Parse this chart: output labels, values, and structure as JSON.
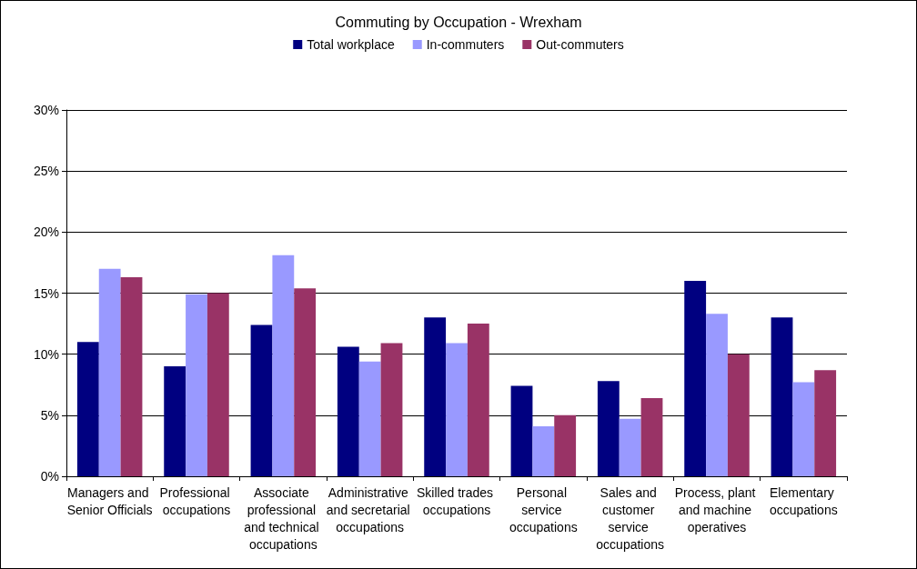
{
  "chart_data": {
    "type": "bar",
    "title": "Commuting by Occupation - Wrexham",
    "categories": [
      "Managers and Senior Officials",
      "Professional occupations",
      "Associate professional and technical occupations",
      "Administrative and secretarial occupations",
      "Skilled trades occupations",
      "Personal service occupations",
      "Sales and customer service occupations",
      "Process, plant and machine operatives",
      "Elementary occupations"
    ],
    "series": [
      {
        "name": "Total workplace",
        "color": "#000080",
        "values": [
          11.0,
          9.0,
          12.4,
          10.6,
          13.0,
          7.4,
          7.8,
          16.0,
          13.0
        ]
      },
      {
        "name": "In-commuters",
        "color": "#9999ff",
        "values": [
          17.0,
          14.9,
          18.1,
          9.4,
          10.9,
          4.1,
          4.7,
          13.3,
          7.7
        ]
      },
      {
        "name": "Out-commuters",
        "color": "#993366",
        "values": [
          16.3,
          15.0,
          15.4,
          10.9,
          12.5,
          5.0,
          6.4,
          10.0,
          8.7
        ]
      }
    ],
    "ylim": [
      0,
      30
    ],
    "yticks": [
      {
        "value": 0,
        "label": "0%"
      },
      {
        "value": 5,
        "label": "5%"
      },
      {
        "value": 10,
        "label": "10%"
      },
      {
        "value": 15,
        "label": "15%"
      },
      {
        "value": 20,
        "label": "20%"
      },
      {
        "value": 25,
        "label": "25%"
      },
      {
        "value": 30,
        "label": "30%"
      }
    ],
    "grid": "y",
    "legend": "top"
  }
}
